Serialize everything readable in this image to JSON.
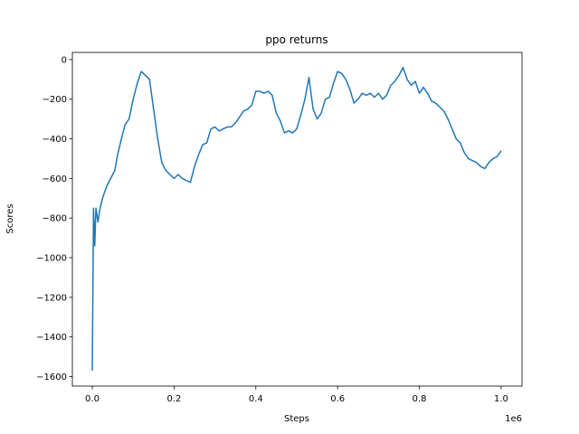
{
  "chart_data": {
    "type": "line",
    "title": "ppo returns",
    "x_label": "Steps",
    "y_label": "Scores",
    "x_offset_label": "1e6",
    "color": "#1f77b4",
    "x": [
      0,
      3000,
      6000,
      9000,
      14000,
      18000,
      25000,
      35000,
      45000,
      55000,
      62000,
      70000,
      80000,
      90000,
      100000,
      110000,
      120000,
      130000,
      140000,
      150000,
      160000,
      170000,
      180000,
      190000,
      200000,
      210000,
      220000,
      230000,
      240000,
      250000,
      260000,
      270000,
      280000,
      290000,
      300000,
      310000,
      320000,
      330000,
      340000,
      350000,
      360000,
      370000,
      380000,
      390000,
      400000,
      410000,
      420000,
      430000,
      440000,
      450000,
      460000,
      470000,
      480000,
      490000,
      500000,
      510000,
      520000,
      530000,
      540000,
      550000,
      560000,
      570000,
      580000,
      590000,
      600000,
      610000,
      620000,
      630000,
      640000,
      650000,
      660000,
      670000,
      680000,
      690000,
      700000,
      710000,
      720000,
      730000,
      740000,
      750000,
      760000,
      770000,
      780000,
      790000,
      800000,
      810000,
      820000,
      830000,
      840000,
      850000,
      860000,
      870000,
      880000,
      890000,
      900000,
      910000,
      920000,
      930000,
      940000,
      950000,
      960000,
      970000,
      980000,
      990000,
      1000000
    ],
    "values": [
      -1570,
      -750,
      -940,
      -750,
      -820,
      -760,
      -700,
      -640,
      -600,
      -560,
      -480,
      -410,
      -330,
      -300,
      -200,
      -120,
      -60,
      -80,
      -100,
      -250,
      -400,
      -520,
      -560,
      -580,
      -600,
      -580,
      -600,
      -610,
      -620,
      -540,
      -480,
      -430,
      -420,
      -350,
      -340,
      -360,
      -350,
      -340,
      -340,
      -320,
      -290,
      -260,
      -250,
      -230,
      -160,
      -160,
      -170,
      -160,
      -180,
      -270,
      -310,
      -370,
      -360,
      -370,
      -350,
      -280,
      -200,
      -90,
      -250,
      -300,
      -270,
      -200,
      -190,
      -120,
      -60,
      -70,
      -100,
      -150,
      -220,
      -200,
      -170,
      -180,
      -170,
      -190,
      -170,
      -200,
      -180,
      -130,
      -110,
      -80,
      -40,
      -100,
      -130,
      -110,
      -170,
      -140,
      -170,
      -210,
      -220,
      -240,
      -260,
      -300,
      -350,
      -400,
      -420,
      -470,
      -500,
      -510,
      -520,
      -540,
      -550,
      -520,
      -500,
      -490,
      -460
    ],
    "xlim": [
      -48700,
      1051000
    ],
    "ylim": [
      -1648,
      36
    ],
    "xticks": [
      {
        "value": 0,
        "label": "0.0"
      },
      {
        "value": 200000,
        "label": "0.2"
      },
      {
        "value": 400000,
        "label": "0.4"
      },
      {
        "value": 600000,
        "label": "0.6"
      },
      {
        "value": 800000,
        "label": "0.8"
      },
      {
        "value": 1000000,
        "label": "1.0"
      }
    ],
    "yticks": [
      {
        "value": -1600,
        "label": "−1600"
      },
      {
        "value": -1400,
        "label": "−1400"
      },
      {
        "value": -1200,
        "label": "−1200"
      },
      {
        "value": -1000,
        "label": "−1000"
      },
      {
        "value": -800,
        "label": "−800"
      },
      {
        "value": -600,
        "label": "−600"
      },
      {
        "value": -400,
        "label": "−400"
      },
      {
        "value": -200,
        "label": "−200"
      },
      0
    ]
  }
}
